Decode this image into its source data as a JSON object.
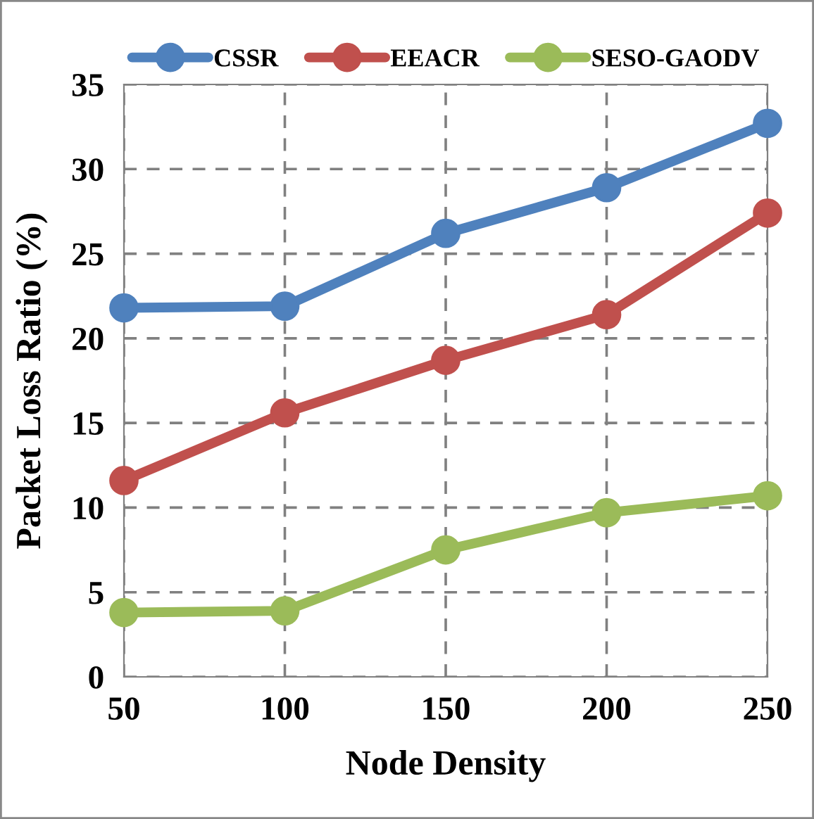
{
  "chart_data": {
    "type": "line",
    "xlabel": "Node Density",
    "ylabel": "Packet Loss Ratio (%)",
    "categories": [
      "50",
      "100",
      "150",
      "200",
      "250"
    ],
    "series": [
      {
        "name": "CSSR",
        "color": "#4f81bd",
        "values": [
          21.8,
          21.9,
          26.2,
          28.9,
          32.7
        ]
      },
      {
        "name": "EEACR",
        "color": "#c0504d",
        "values": [
          11.6,
          15.6,
          18.7,
          21.4,
          27.4
        ]
      },
      {
        "name": "SESO-GAODV",
        "color": "#9bbb59",
        "values": [
          3.8,
          3.9,
          7.5,
          9.7,
          10.7
        ]
      }
    ],
    "ylim": [
      0,
      35
    ],
    "yticks": [
      0,
      5,
      10,
      15,
      20,
      25,
      30,
      35
    ],
    "grid": true,
    "legend": "top",
    "marker": "circle",
    "line_style": "solid"
  }
}
